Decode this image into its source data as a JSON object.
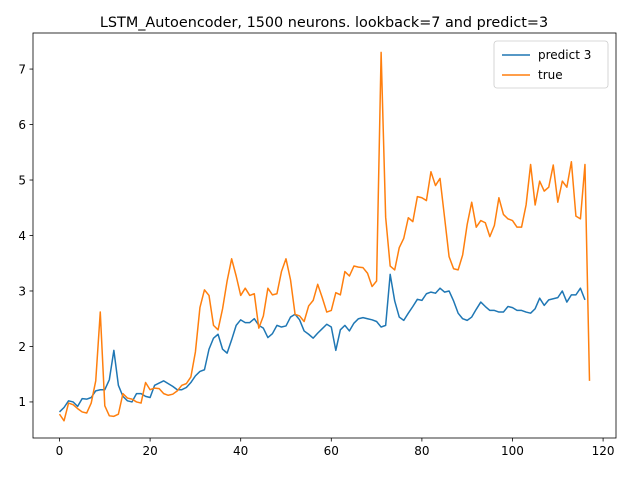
{
  "chart_data": {
    "type": "line",
    "title": "LSTM_Autoencoder, 1500 neurons. lookback=7 and predict=3",
    "xlabel": "",
    "ylabel": "",
    "xlim": [
      -5.85,
      122.85
    ],
    "ylim": [
      0.35,
      7.65
    ],
    "xticks": [
      0,
      20,
      40,
      60,
      80,
      100,
      120
    ],
    "yticks": [
      1,
      2,
      3,
      4,
      5,
      6,
      7
    ],
    "grid": false,
    "legend_position": "top-right",
    "series": [
      {
        "name": "predict 3",
        "color": "#1f77b4",
        "x_start": 0,
        "values": [
          0.82,
          0.9,
          1.02,
          1.0,
          0.92,
          1.06,
          1.05,
          1.08,
          1.2,
          1.22,
          1.22,
          1.4,
          1.93,
          1.3,
          1.1,
          1.02,
          1.0,
          1.15,
          1.15,
          1.1,
          1.08,
          1.3,
          1.34,
          1.38,
          1.33,
          1.28,
          1.22,
          1.22,
          1.26,
          1.35,
          1.47,
          1.55,
          1.58,
          1.95,
          2.15,
          2.22,
          1.95,
          1.88,
          2.12,
          2.38,
          2.48,
          2.43,
          2.43,
          2.5,
          2.38,
          2.33,
          2.16,
          2.23,
          2.38,
          2.35,
          2.37,
          2.53,
          2.58,
          2.48,
          2.28,
          2.22,
          2.15,
          2.24,
          2.32,
          2.4,
          2.35,
          1.93,
          2.3,
          2.38,
          2.28,
          2.42,
          2.5,
          2.52,
          2.5,
          2.48,
          2.45,
          2.35,
          2.38,
          3.3,
          2.82,
          2.53,
          2.47,
          2.6,
          2.72,
          2.85,
          2.83,
          2.95,
          2.98,
          2.96,
          3.05,
          2.98,
          3.0,
          2.82,
          2.6,
          2.5,
          2.47,
          2.53,
          2.67,
          2.8,
          2.72,
          2.65,
          2.65,
          2.62,
          2.62,
          2.72,
          2.7,
          2.65,
          2.65,
          2.62,
          2.6,
          2.68,
          2.87,
          2.74,
          2.84,
          2.86,
          2.88,
          3.0,
          2.8,
          2.93,
          2.93,
          3.05,
          2.84
        ]
      },
      {
        "name": "true",
        "color": "#ff7f0e",
        "x_start": 0,
        "values": [
          0.78,
          0.66,
          0.98,
          0.95,
          0.88,
          0.82,
          0.8,
          0.98,
          1.38,
          2.62,
          0.93,
          0.75,
          0.74,
          0.78,
          1.15,
          1.07,
          1.05,
          1.0,
          0.98,
          1.35,
          1.22,
          1.25,
          1.24,
          1.15,
          1.12,
          1.14,
          1.2,
          1.3,
          1.33,
          1.45,
          1.9,
          2.7,
          3.02,
          2.92,
          2.38,
          2.3,
          2.68,
          3.18,
          3.58,
          3.27,
          2.92,
          3.05,
          2.92,
          2.95,
          2.33,
          2.55,
          3.05,
          2.93,
          2.95,
          3.35,
          3.58,
          3.2,
          2.58,
          2.55,
          2.45,
          2.73,
          2.83,
          3.12,
          2.88,
          2.62,
          2.65,
          2.97,
          2.93,
          3.35,
          3.27,
          3.45,
          3.43,
          3.42,
          3.32,
          3.08,
          3.18,
          7.3,
          4.33,
          3.45,
          3.38,
          3.78,
          3.95,
          4.32,
          4.25,
          4.7,
          4.68,
          4.63,
          5.15,
          4.9,
          5.03,
          4.33,
          3.62,
          3.4,
          3.38,
          3.65,
          4.2,
          4.6,
          4.15,
          4.27,
          4.23,
          3.98,
          4.18,
          4.68,
          4.38,
          4.3,
          4.27,
          4.15,
          4.15,
          4.55,
          5.28,
          4.55,
          4.98,
          4.8,
          4.87,
          5.27,
          4.6,
          4.98,
          4.87,
          5.33,
          4.35,
          4.3,
          5.28,
          1.38
        ]
      }
    ]
  }
}
